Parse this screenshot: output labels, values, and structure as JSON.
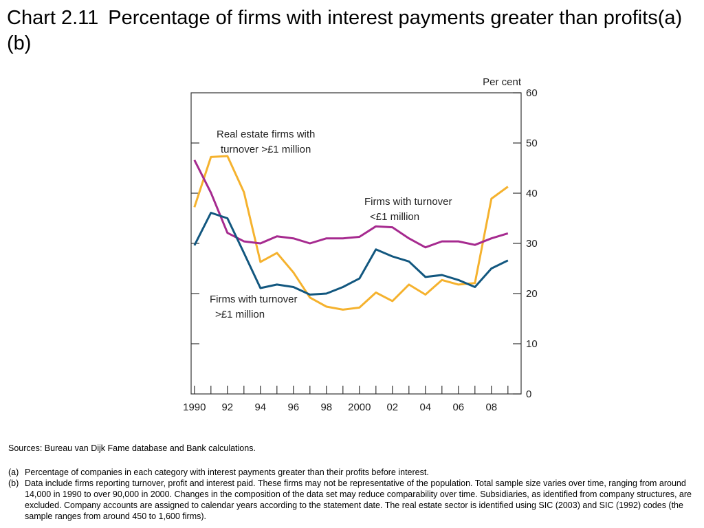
{
  "title": {
    "number": "Chart 2.11",
    "text": "Percentage of firms with interest payments greater than profits(a)(b)"
  },
  "chart_data": {
    "type": "line",
    "y_unit_label": "Per cent",
    "ylim": [
      0,
      60
    ],
    "y_ticks": [
      0,
      10,
      20,
      30,
      40,
      50,
      60
    ],
    "y_axis_side": "right",
    "xlim": [
      1989.8,
      2009.8
    ],
    "x_ticks": [
      {
        "value": 1990,
        "label": "1990"
      },
      {
        "value": 1992,
        "label": "92"
      },
      {
        "value": 1994,
        "label": "94"
      },
      {
        "value": 1996,
        "label": "96"
      },
      {
        "value": 1998,
        "label": "98"
      },
      {
        "value": 2000,
        "label": "2000"
      },
      {
        "value": 2002,
        "label": "02"
      },
      {
        "value": 2004,
        "label": "04"
      },
      {
        "value": 2006,
        "label": "06"
      },
      {
        "value": 2008,
        "label": "08"
      }
    ],
    "x": [
      1990,
      1991,
      1992,
      1993,
      1994,
      1995,
      1996,
      1997,
      1998,
      1999,
      2000,
      2001,
      2002,
      2003,
      2004,
      2005,
      2006,
      2007,
      2008,
      2009
    ],
    "series": [
      {
        "name": "Real estate firms with turnover >£1 million",
        "label_lines": [
          "Real estate firms with",
          "turnover >£1 million"
        ],
        "color": "#f5b22e",
        "values": [
          37.2,
          47.2,
          47.4,
          40.2,
          26.3,
          28.1,
          24.2,
          19.2,
          17.4,
          16.8,
          17.2,
          20.2,
          18.5,
          21.8,
          19.8,
          22.7,
          21.8,
          22.1,
          38.9,
          41.3
        ]
      },
      {
        "name": "Firms with turnover <£1 million",
        "label_lines": [
          "Firms with turnover",
          "<£1 million"
        ],
        "color": "#a62a8f",
        "values": [
          46.6,
          40.1,
          32.1,
          30.4,
          30.0,
          31.4,
          31.0,
          30.0,
          31.0,
          31.0,
          31.3,
          33.4,
          33.2,
          31.0,
          29.2,
          30.4,
          30.4,
          29.7,
          31.0,
          32.0
        ]
      },
      {
        "name": "Firms with turnover >£1 million",
        "label_lines": [
          "Firms with turnover",
          ">£1 million"
        ],
        "color": "#12577f",
        "values": [
          29.6,
          36.1,
          35.0,
          28.1,
          21.1,
          21.8,
          21.3,
          19.8,
          20.0,
          21.3,
          23.0,
          28.8,
          27.4,
          26.4,
          23.3,
          23.7,
          22.7,
          21.3,
          25.0,
          26.6
        ]
      }
    ],
    "grid": false
  },
  "notes": {
    "sources": "Sources:  Bureau van Dijk Fame database and Bank calculations.",
    "items": [
      {
        "marker": "(a)",
        "text": "Percentage of companies in each category with interest payments greater than their profits before interest."
      },
      {
        "marker": "(b)",
        "text": "Data include firms reporting turnover, profit and interest paid.  These firms may not be representative of the population.  Total sample size varies over time, ranging from around 14,000 in 1990 to over 90,000 in 2000.  Changes in the composition of the data set may reduce comparability over time.  Subsidiaries, as identified from company structures, are excluded.  Company accounts are assigned to calendar years according to the statement date.  The real estate sector is identified using SIC (2003) and SIC (1992) codes (the sample ranges from around 450 to 1,600 firms)."
      }
    ]
  }
}
